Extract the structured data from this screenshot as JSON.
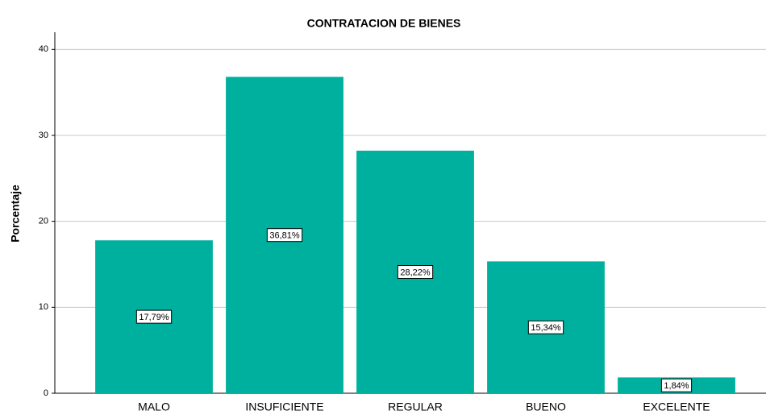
{
  "chart_data": {
    "type": "bar",
    "title": "CONTRATACION DE BIENES",
    "y_label": "Porcentaje",
    "categories": [
      "MALO",
      "INSUFICIENTE",
      "REGULAR",
      "BUENO",
      "EXCELENTE"
    ],
    "values": [
      17.79,
      36.81,
      28.22,
      15.34,
      1.84
    ],
    "value_labels": [
      "17,79%",
      "36,81%",
      "28,22%",
      "15,34%",
      "1,84%"
    ],
    "color": "#00b09e",
    "ylim": [
      0,
      42
    ],
    "yticks": [
      0,
      10,
      20,
      30,
      40
    ],
    "grid": true
  }
}
